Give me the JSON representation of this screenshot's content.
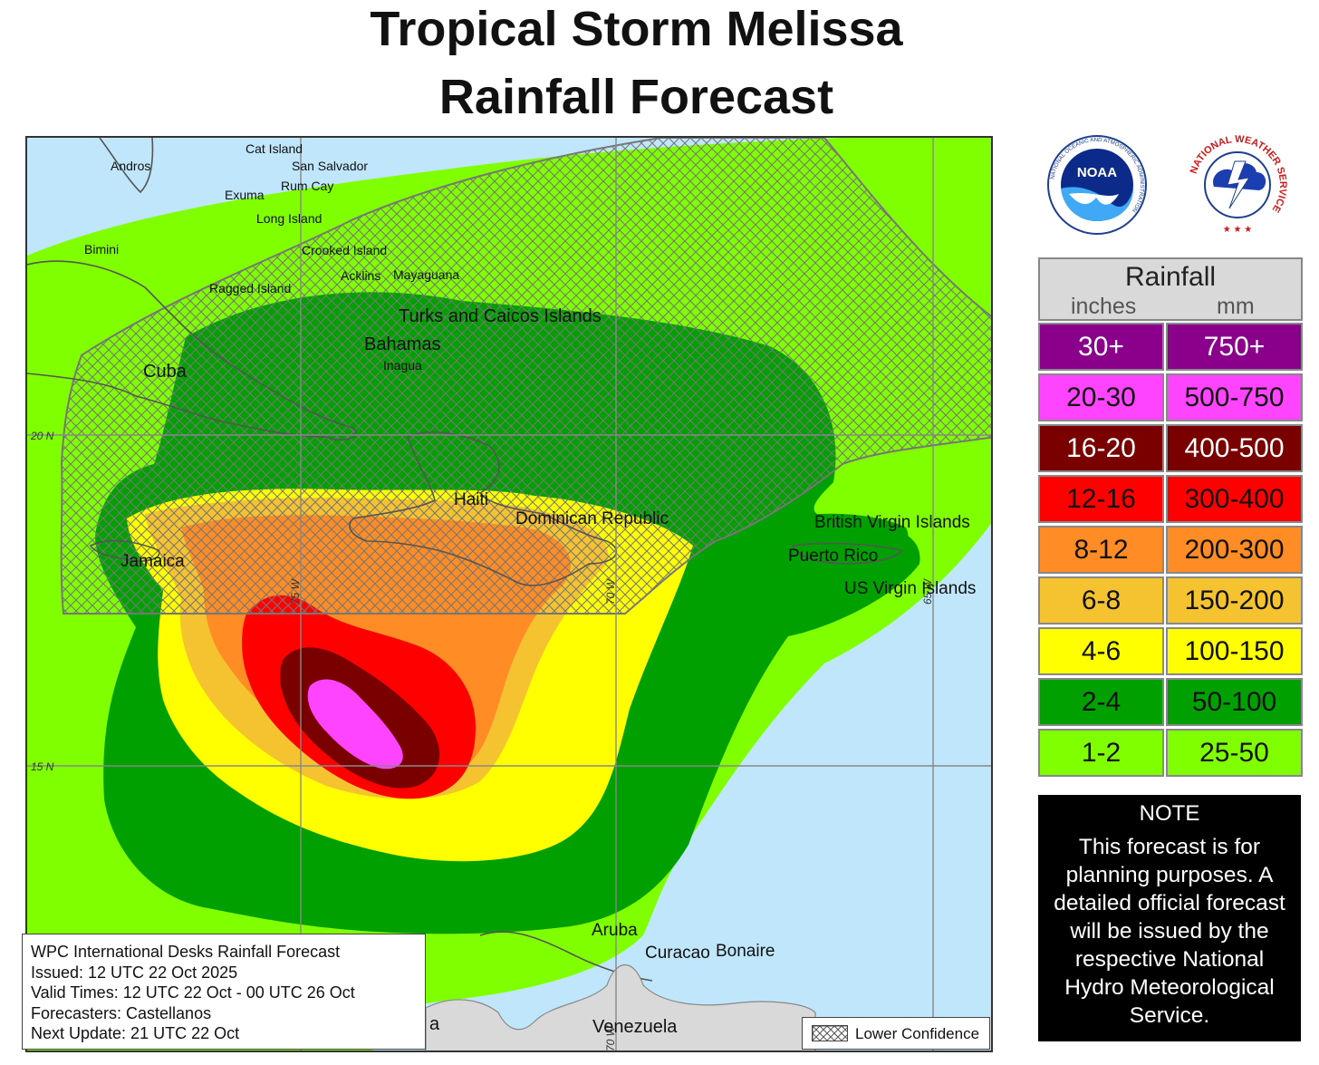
{
  "title": {
    "line1": "Tropical Storm Melissa",
    "line2": "Rainfall Forecast"
  },
  "places": {
    "andros": "Andros",
    "cat_island": "Cat Island",
    "san_salvador": "San Salvador",
    "rum_cay": "Rum Cay",
    "exuma": "Exuma",
    "long_island": "Long Island",
    "bimini": "Bimini",
    "crooked_island": "Crooked Island",
    "acklins": "Acklins",
    "mayaguana": "Mayaguana",
    "ragged_island": "Ragged Island",
    "turks_caicos": "Turks and Caicos Islands",
    "bahamas": "Bahamas",
    "inagua": "Inagua",
    "cuba": "Cuba",
    "haiti": "Haiti",
    "dominican_republic": "Dominican Republic",
    "jamaica": "Jamaica",
    "bvi": "British Virgin Islands",
    "puerto_rico": "Puerto Rico",
    "usvi": "US Virgin Islands",
    "aruba": "Aruba",
    "curacao": "Curacao",
    "bonaire": "Bonaire",
    "venezuela": "Venezuela",
    "colombia_partial": "a"
  },
  "grid": {
    "lat_20": "20 N",
    "lat_15": "15 N",
    "lon_75": "75 W",
    "lon_70": "70 W",
    "lon_65": "65 W"
  },
  "info": {
    "line1": "WPC International Desks Rainfall Forecast",
    "line2": "Issued: 12 UTC 22 Oct 2025",
    "line3": "Valid Times: 12 UTC 22 Oct - 00 UTC 26 Oct",
    "line4": "Forecasters: Castellanos",
    "line5": "Next Update: 21 UTC 22 Oct"
  },
  "lower_confidence_label": "Lower Confidence",
  "logos": {
    "noaa_text": "NOAA",
    "noaa_ring": "NATIONAL OCEANIC AND ATMOSPHERIC ADMINISTRATION",
    "noaa_dept": "U.S. DEPARTMENT OF COMMERCE",
    "nws_ring": "NATIONAL WEATHER SERVICE"
  },
  "legend": {
    "title": "Rainfall",
    "col_inches": "inches",
    "col_mm": "mm",
    "rows": [
      {
        "inches": "30+",
        "mm": "750+",
        "color": "#8b008b",
        "text_color": "#ffffff"
      },
      {
        "inches": "20-30",
        "mm": "500-750",
        "color": "#ff44ff",
        "text_color": "#111111"
      },
      {
        "inches": "16-20",
        "mm": "400-500",
        "color": "#7a0000",
        "text_color": "#ffffff"
      },
      {
        "inches": "12-16",
        "mm": "300-400",
        "color": "#ff0000",
        "text_color": "#111111"
      },
      {
        "inches": "8-12",
        "mm": "200-300",
        "color": "#ff8c24",
        "text_color": "#111111"
      },
      {
        "inches": "6-8",
        "mm": "150-200",
        "color": "#f5c330",
        "text_color": "#111111"
      },
      {
        "inches": "4-6",
        "mm": "100-150",
        "color": "#ffff00",
        "text_color": "#111111"
      },
      {
        "inches": "2-4",
        "mm": "50-100",
        "color": "#00a000",
        "text_color": "#111111"
      },
      {
        "inches": "1-2",
        "mm": "25-50",
        "color": "#7fff00",
        "text_color": "#111111"
      }
    ]
  },
  "note": {
    "title": "NOTE",
    "body": "This forecast is for planning purposes. A detailed official forecast will be issued by the respective National Hydro Meteorological Service."
  }
}
